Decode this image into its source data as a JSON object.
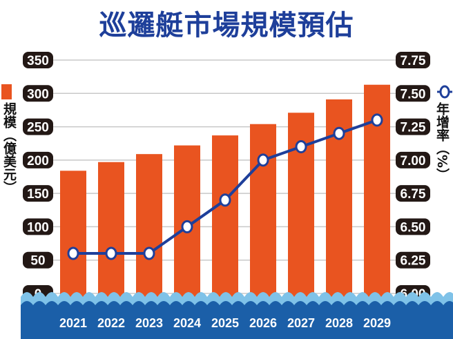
{
  "chart_data": {
    "type": "bar+line",
    "title": "巡邏艇市場規模預估",
    "categories": [
      "2021",
      "2022",
      "2023",
      "2024",
      "2025",
      "2026",
      "2027",
      "2028",
      "2029"
    ],
    "series": [
      {
        "name": "規模（億美元）",
        "type": "bar",
        "axis": "left",
        "values": [
          184,
          197,
          209,
          222,
          237,
          254,
          271,
          291,
          313
        ],
        "color": "#e95420"
      },
      {
        "name": "年增率（%）",
        "type": "line",
        "axis": "right",
        "values": [
          6.3,
          6.3,
          6.3,
          6.5,
          6.7,
          7.0,
          7.1,
          7.2,
          7.3
        ],
        "color": "#1e3f9a"
      }
    ],
    "ylim_left": [
      0,
      350
    ],
    "yticks_left": [
      "0",
      "50",
      "100",
      "150",
      "200",
      "250",
      "300",
      "350"
    ],
    "ylim_right": [
      6.0,
      7.75
    ],
    "yticks_right": [
      "6.00",
      "6.25",
      "6.50",
      "6.75",
      "7.00",
      "7.25",
      "7.50",
      "7.75"
    ],
    "ylabel_left": "規模（億美元）",
    "ylabel_right": "年增率（%）",
    "grid": true,
    "legend": "axis-labels"
  }
}
